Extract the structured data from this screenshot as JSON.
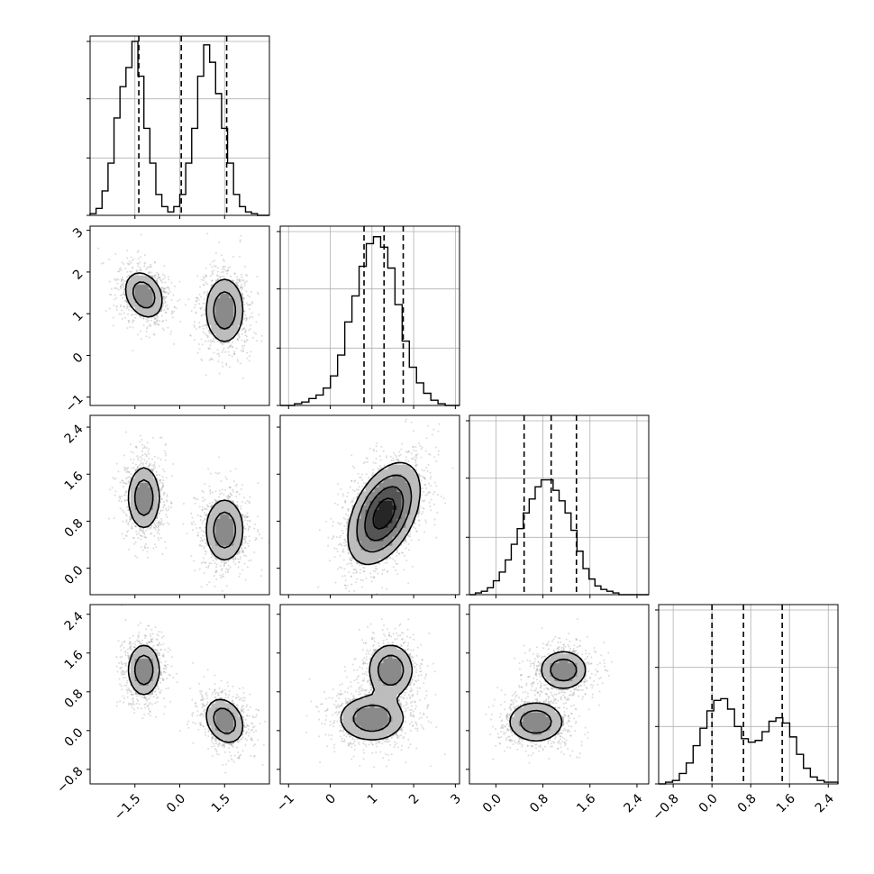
{
  "chart_data": {
    "type": "corner",
    "grid": true,
    "dimensions": [
      {
        "range": [
          -3.0,
          3.0
        ],
        "ticks": [
          -1.5,
          0.0,
          1.5
        ],
        "tick_labels": [
          "−1.5",
          "0.0",
          "1.5"
        ],
        "quantiles": [
          -1.37,
          0.05,
          1.57
        ]
      },
      {
        "range": [
          -1.2,
          3.1
        ],
        "ticks": [
          -1,
          0,
          1,
          2,
          3
        ],
        "tick_labels": [
          "−1",
          "0",
          "1",
          "2",
          "3"
        ],
        "quantiles": [
          0.81,
          1.29,
          1.75
        ]
      },
      {
        "range": [
          -0.45,
          2.6
        ],
        "ticks": [
          0.0,
          0.8,
          1.6,
          2.4
        ],
        "tick_labels": [
          "0.0",
          "0.8",
          "1.6",
          "2.4"
        ],
        "quantiles": [
          0.48,
          0.94,
          1.37
        ]
      },
      {
        "range": [
          -1.1,
          2.6
        ],
        "ticks": [
          -0.8,
          0.0,
          0.8,
          1.6,
          2.4
        ],
        "tick_labels": [
          "−0.8",
          "0.0",
          "0.8",
          "1.6",
          "2.4"
        ],
        "quantiles": [
          0.0,
          0.65,
          1.45
        ]
      }
    ],
    "histograms": [
      {
        "dim": 0,
        "counts": [
          0.01,
          0.04,
          0.14,
          0.3,
          0.56,
          0.74,
          0.85,
          1.0,
          0.8,
          0.5,
          0.3,
          0.12,
          0.05,
          0.02,
          0.05,
          0.12,
          0.3,
          0.5,
          0.8,
          0.98,
          0.88,
          0.7,
          0.5,
          0.3,
          0.12,
          0.05,
          0.02,
          0.01,
          0.0,
          0.0
        ]
      },
      {
        "dim": 1,
        "counts": [
          0.0,
          0.0,
          0.01,
          0.02,
          0.04,
          0.06,
          0.1,
          0.17,
          0.29,
          0.48,
          0.63,
          0.8,
          0.93,
          0.97,
          0.91,
          0.79,
          0.58,
          0.37,
          0.22,
          0.13,
          0.07,
          0.03,
          0.01,
          0.0,
          0.0
        ]
      },
      {
        "dim": 2,
        "counts": [
          0.0,
          0.01,
          0.02,
          0.04,
          0.08,
          0.13,
          0.2,
          0.29,
          0.38,
          0.47,
          0.55,
          0.62,
          0.66,
          0.66,
          0.6,
          0.54,
          0.47,
          0.37,
          0.25,
          0.15,
          0.09,
          0.05,
          0.03,
          0.02,
          0.01,
          0.0,
          0.0,
          0.0,
          0.0,
          0.0
        ]
      },
      {
        "dim": 3,
        "counts": [
          0.0,
          0.01,
          0.02,
          0.06,
          0.12,
          0.22,
          0.32,
          0.42,
          0.48,
          0.49,
          0.43,
          0.33,
          0.26,
          0.24,
          0.25,
          0.3,
          0.36,
          0.38,
          0.35,
          0.27,
          0.17,
          0.09,
          0.04,
          0.02,
          0.01,
          0.01
        ]
      }
    ],
    "panels_2d": [
      {
        "row": 1,
        "col": 0,
        "modes": [
          {
            "mean": [
              -1.2,
              1.45
            ],
            "std": [
              0.36,
              0.31
            ],
            "rho": -0.25,
            "weight": 0.5
          },
          {
            "mean": [
              1.5,
              1.08
            ],
            "std": [
              0.36,
              0.44
            ],
            "rho": 0.0,
            "weight": 0.5
          }
        ]
      },
      {
        "row": 2,
        "col": 0,
        "modes": [
          {
            "mean": [
              -1.2,
              1.2
            ],
            "std": [
              0.3,
              0.3
            ],
            "rho": 0.0,
            "weight": 0.5
          },
          {
            "mean": [
              1.5,
              0.65
            ],
            "std": [
              0.36,
              0.3
            ],
            "rho": 0.0,
            "weight": 0.5
          }
        ]
      },
      {
        "row": 2,
        "col": 1,
        "modes": [
          {
            "mean": [
              1.29,
              0.93
            ],
            "std": [
              0.42,
              0.42
            ],
            "rho": 0.45,
            "weight": 1.0
          }
        ]
      },
      {
        "row": 3,
        "col": 0,
        "modes": [
          {
            "mean": [
              -1.2,
              1.25
            ],
            "std": [
              0.3,
              0.3
            ],
            "rho": 0.0,
            "weight": 0.5
          },
          {
            "mean": [
              1.5,
              0.2
            ],
            "std": [
              0.36,
              0.26
            ],
            "rho": -0.25,
            "weight": 0.5
          }
        ]
      },
      {
        "row": 3,
        "col": 1,
        "modes": [
          {
            "mean": [
              1.0,
              0.25
            ],
            "std": [
              0.44,
              0.26
            ],
            "rho": 0.0,
            "weight": 0.5
          },
          {
            "mean": [
              1.45,
              1.25
            ],
            "std": [
              0.3,
              0.3
            ],
            "rho": 0.0,
            "weight": 0.5
          }
        ]
      },
      {
        "row": 3,
        "col": 2,
        "modes": [
          {
            "mean": [
              0.68,
              0.18
            ],
            "std": [
              0.26,
              0.23
            ],
            "rho": 0.0,
            "weight": 0.5
          },
          {
            "mean": [
              1.15,
              1.25
            ],
            "std": [
              0.22,
              0.22
            ],
            "rho": 0.0,
            "weight": 0.5
          }
        ]
      }
    ],
    "contour_levels": [
      0.12,
      0.3,
      0.55,
      0.82
    ]
  }
}
